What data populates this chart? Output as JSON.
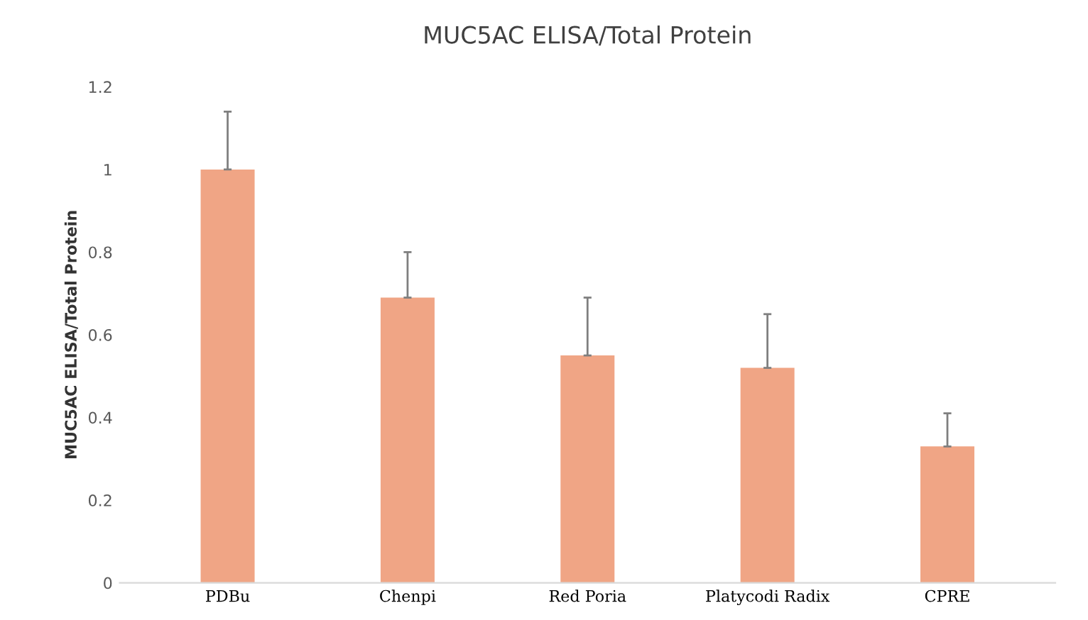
{
  "chart_data": {
    "type": "bar",
    "title": "MUC5AC ELISA/Total Protein",
    "ylabel": "MUC5AC ELISA/Total Protein",
    "categories": [
      "PDBu",
      "Chenpi",
      "Red Poria",
      "Platycodi Radix",
      "CPRE"
    ],
    "values": [
      1.0,
      0.69,
      0.55,
      0.52,
      0.33
    ],
    "errors": [
      [
        1.0,
        1.14
      ],
      [
        0.69,
        0.8
      ],
      [
        0.55,
        0.69
      ],
      [
        0.52,
        0.65
      ],
      [
        0.33,
        0.41
      ]
    ],
    "color": "#f0a585",
    "ylim": [
      0,
      1.2
    ],
    "yticks": [
      0,
      0.2,
      0.4,
      0.6,
      0.8,
      1,
      1.2
    ],
    "grid": false
  }
}
